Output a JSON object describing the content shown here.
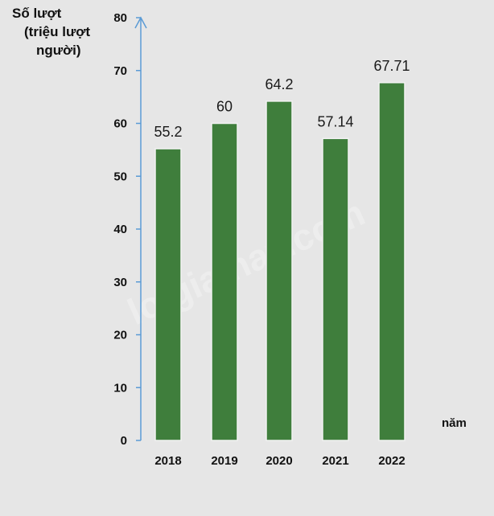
{
  "chart_data": {
    "type": "bar",
    "categories": [
      "2018",
      "2019",
      "2020",
      "2021",
      "2022"
    ],
    "values": [
      55.2,
      60,
      64.2,
      57.14,
      67.71
    ],
    "data_labels": [
      "55.2",
      "60",
      "64.2",
      "57.14",
      "67.71"
    ],
    "ylabel_lines": [
      "Số lượt",
      "(triệu lượt",
      "người)"
    ],
    "xlabel": "năm",
    "ylim": [
      0,
      80
    ],
    "yticks": [
      0,
      10,
      20,
      30,
      40,
      50,
      60,
      70,
      80
    ],
    "grid": false,
    "legend": "none"
  },
  "watermark": "loigiaihay.com",
  "colors": {
    "bar": "#3f7e3c",
    "bar_edge": "#f2f2f2",
    "axis": "#5b9bd5",
    "background": "#e6e6e6"
  }
}
